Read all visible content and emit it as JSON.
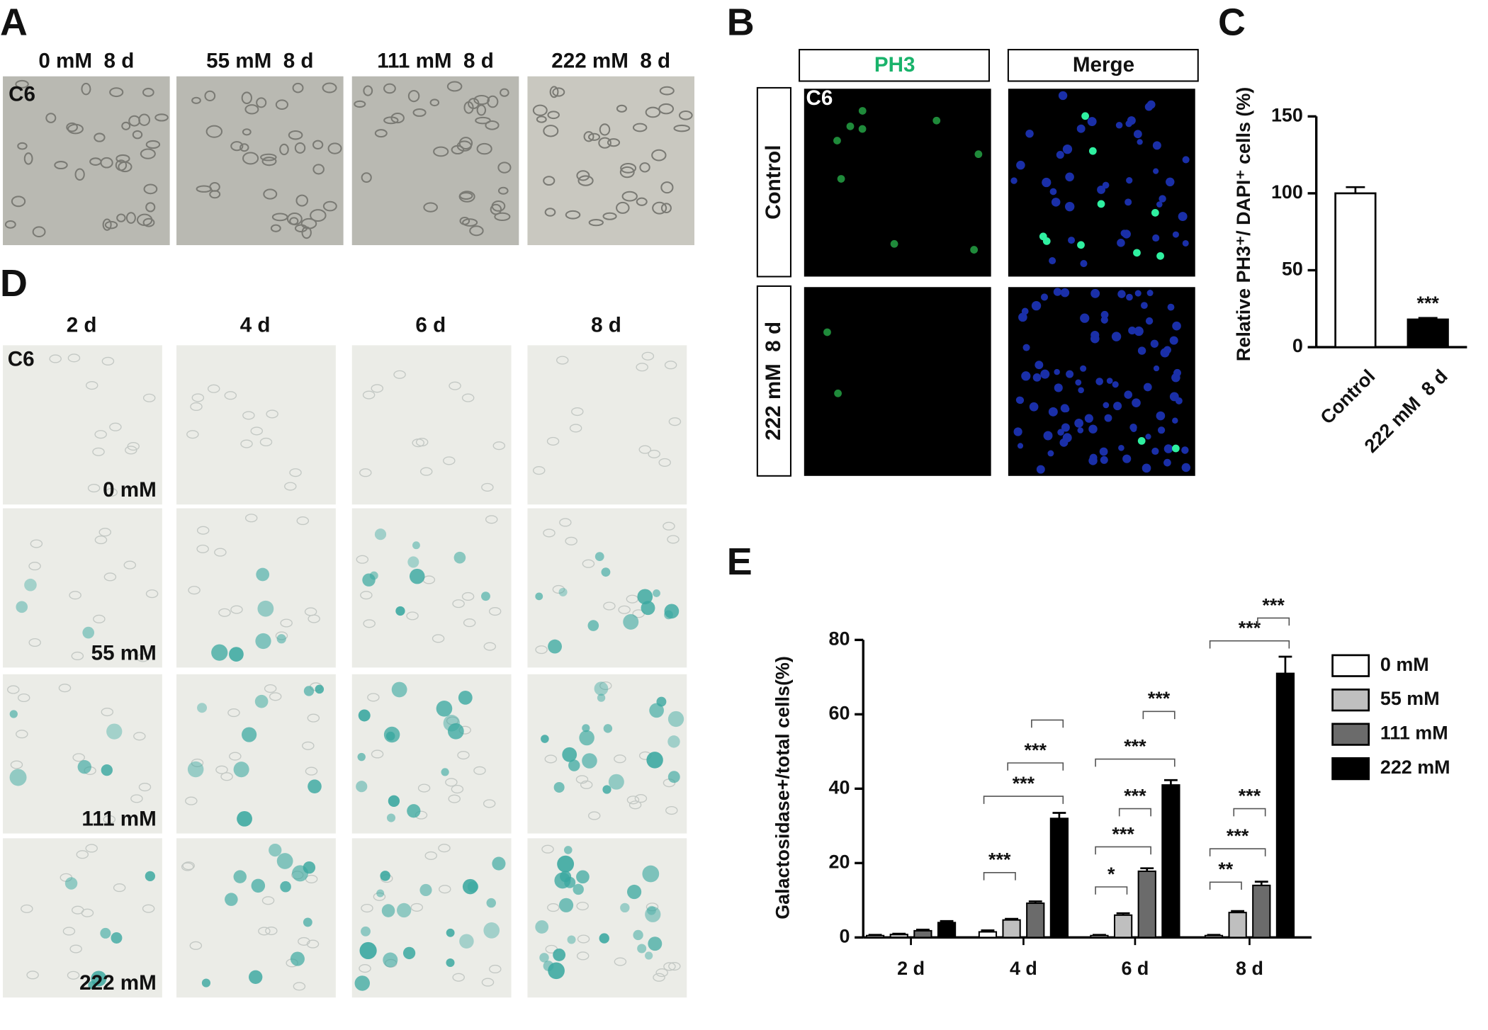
{
  "panel_labels": [
    "A",
    "B",
    "C",
    "D",
    "E"
  ],
  "panel_a": {
    "columns": [
      "0 mM  8 d",
      "55 mM  8 d",
      "111 mM  8 d",
      "222 mM  8 d"
    ],
    "cell_line": "C6"
  },
  "panel_b": {
    "columns": [
      "PH3",
      "Merge"
    ],
    "rows": [
      "Control",
      "222 mM  8 d"
    ],
    "cell_line": "C6"
  },
  "panel_d": {
    "columns": [
      "2 d",
      "4 d",
      "6 d",
      "8 d"
    ],
    "rows": [
      "0 mM",
      "55 mM",
      "111 mM",
      "222 mM"
    ],
    "cell_line": "C6"
  },
  "chart_data": [
    {
      "type": "bar",
      "y_label": "Relative PH3⁺/ DAPI⁺ cells (%)",
      "categories": [
        "Control",
        "222 mM  8 d"
      ],
      "values": [
        100,
        18
      ],
      "errors": [
        4,
        1
      ],
      "colors": [
        "#ffffff",
        "#000000"
      ],
      "ylim": [
        0,
        150
      ],
      "yticks": [
        0,
        50,
        100,
        150
      ],
      "annotations": [
        "***"
      ]
    },
    {
      "type": "grouped_bar",
      "y_label": "Galactosidase+/total cells(%)",
      "categories": [
        "2 d",
        "4 d",
        "6 d",
        "8 d"
      ],
      "series": [
        {
          "name": "0 mM",
          "color": "#ffffff",
          "values": [
            0.5,
            1.5,
            0.5,
            0.5
          ],
          "errors": [
            0.2,
            0.4,
            0.2,
            0.2
          ]
        },
        {
          "name": "55 mM",
          "color": "#bfbfbf",
          "values": [
            0.8,
            4.7,
            6,
            6.7
          ],
          "errors": [
            0.2,
            0.3,
            0.5,
            0.4
          ]
        },
        {
          "name": "111 mM",
          "color": "#6b6b6b",
          "values": [
            1.8,
            9.2,
            17.8,
            14
          ],
          "errors": [
            0.3,
            0.5,
            0.8,
            1
          ]
        },
        {
          "name": "222 mM",
          "color": "#000000",
          "values": [
            4,
            32,
            41,
            71
          ],
          "errors": [
            0.4,
            1.5,
            1.3,
            4.5
          ]
        }
      ],
      "ylim": [
        0,
        80
      ],
      "yticks": [
        0,
        20,
        40,
        60,
        80
      ],
      "annotations": [
        "***",
        "***",
        "***",
        "*",
        "***",
        "***",
        "***",
        "***",
        "**",
        "***",
        "***",
        "***",
        "***"
      ]
    }
  ]
}
